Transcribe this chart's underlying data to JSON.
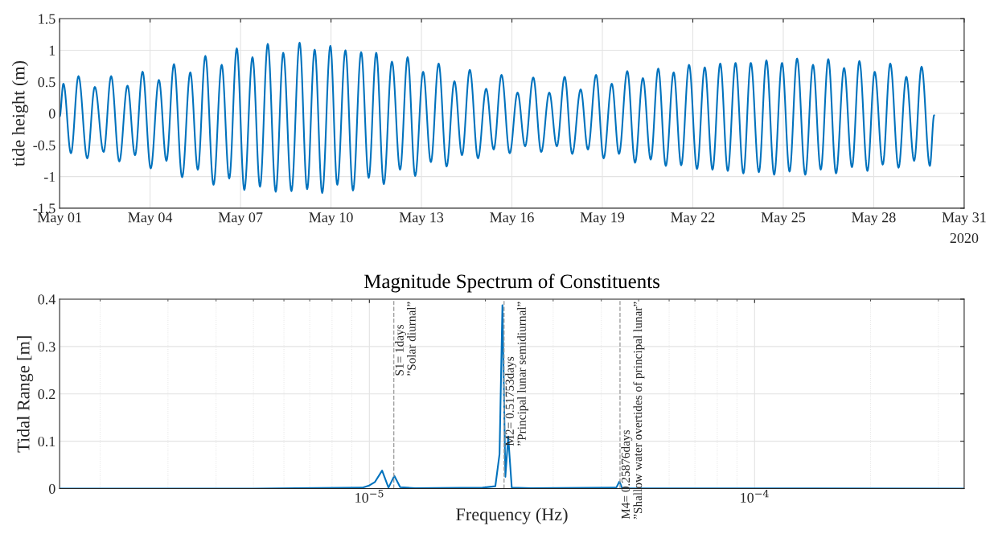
{
  "chart_data": [
    {
      "type": "line",
      "ylabel": "tide height (m)",
      "grid": true,
      "xlim": [
        "2020-05-01",
        "2020-05-31"
      ],
      "xticks": [
        {
          "value": "2020-05-01",
          "label": "May 01"
        },
        {
          "value": "2020-05-04",
          "label": "May 04"
        },
        {
          "value": "2020-05-07",
          "label": "May 07"
        },
        {
          "value": "2020-05-10",
          "label": "May 10"
        },
        {
          "value": "2020-05-13",
          "label": "May 13"
        },
        {
          "value": "2020-05-16",
          "label": "May 16"
        },
        {
          "value": "2020-05-19",
          "label": "May 19"
        },
        {
          "value": "2020-05-22",
          "label": "May 22"
        },
        {
          "value": "2020-05-25",
          "label": "May 25"
        },
        {
          "value": "2020-05-28",
          "label": "May 28"
        },
        {
          "value": "2020-05-31",
          "label": "May 31"
        }
      ],
      "ylim": [
        -1.5,
        1.5
      ],
      "yticks": [
        -1.5,
        -1,
        -0.5,
        0,
        0.5,
        1,
        1.5
      ],
      "annotations": [
        "2020"
      ],
      "x": [
        "2020-05-01T00:00",
        "2020-05-01T03:00",
        "2020-05-01T09:00",
        "2020-05-01T15:00",
        "2020-05-01T22:00",
        "2020-05-02T04:00",
        "2020-05-02T11:00",
        "2020-05-02T17:00",
        "2020-05-02T23:30",
        "2020-05-03T06:00",
        "2020-05-03T12:00",
        "2020-05-03T18:00",
        "2020-05-04T00:30",
        "2020-05-04T07:00",
        "2020-05-04T13:00",
        "2020-05-04T19:00",
        "2020-05-05T01:30",
        "2020-05-05T08:00",
        "2020-05-05T14:00",
        "2020-05-05T20:00",
        "2020-05-06T02:30",
        "2020-05-06T09:00",
        "2020-05-06T15:00",
        "2020-05-06T21:00",
        "2020-05-07T03:00",
        "2020-05-07T09:30",
        "2020-05-07T15:30",
        "2020-05-07T21:40",
        "2020-05-08T04:00",
        "2020-05-08T10:00",
        "2020-05-08T16:30",
        "2020-05-08T23:00",
        "2020-05-09T05:00",
        "2020-05-09T11:00",
        "2020-05-09T17:00",
        "2020-05-09T23:30",
        "2020-05-10T05:00",
        "2020-05-10T11:30",
        "2020-05-10T17:30",
        "2020-05-11T00:00",
        "2020-05-11T06:00",
        "2020-05-11T12:00",
        "2020-05-11T18:00",
        "2020-05-12T00:30",
        "2020-05-12T07:00",
        "2020-05-12T13:00",
        "2020-05-12T19:00",
        "2020-05-13T01:20",
        "2020-05-13T07:30",
        "2020-05-13T13:40",
        "2020-05-13T20:00",
        "2020-05-14T02:15",
        "2020-05-14T08:15",
        "2020-05-14T14:30",
        "2020-05-14T21:00",
        "2020-05-15T03:30",
        "2020-05-15T09:30",
        "2020-05-15T15:45",
        "2020-05-15T22:15",
        "2020-05-16T04:30",
        "2020-05-16T10:30",
        "2020-05-16T17:00",
        "2020-05-16T23:20",
        "2020-05-17T05:45",
        "2020-05-17T11:45",
        "2020-05-17T18:00",
        "2020-05-18T00:00",
        "2020-05-18T06:45",
        "2020-05-18T12:30",
        "2020-05-18T19:00",
        "2020-05-19T01:00",
        "2020-05-19T07:30",
        "2020-05-19T13:15",
        "2020-05-19T19:50",
        "2020-05-20T02:00",
        "2020-05-20T08:15",
        "2020-05-20T14:30",
        "2020-05-20T20:30",
        "2020-05-21T02:30",
        "2020-05-21T08:45",
        "2020-05-21T14:45",
        "2020-05-21T21:00",
        "2020-05-22T03:20",
        "2020-05-22T09:30",
        "2020-05-22T15:40",
        "2020-05-22T21:50",
        "2020-05-23T03:50",
        "2020-05-23T10:00",
        "2020-05-23T16:15",
        "2020-05-23T22:10",
        "2020-05-24T04:35",
        "2020-05-24T10:35",
        "2020-05-24T16:45",
        "2020-05-24T23:00",
        "2020-05-25T05:00",
        "2020-05-25T11:00",
        "2020-05-25T17:30",
        "2020-05-25T23:40",
        "2020-05-26T05:50",
        "2020-05-26T11:50",
        "2020-05-26T18:00",
        "2020-05-27T00:25",
        "2020-05-27T06:40",
        "2020-05-27T12:35",
        "2020-05-27T19:00",
        "2020-05-28T00:45",
        "2020-05-28T07:10",
        "2020-05-28T13:10",
        "2020-05-28T19:45",
        "2020-05-29T01:55",
        "2020-05-29T08:10",
        "2020-05-29T14:05",
        "2020-05-29T20:40",
        "2020-05-30T00:05"
      ],
      "series": [
        {
          "color": "#0072bd",
          "values": [
            -0.05,
            0.47,
            -0.63,
            0.59,
            -0.71,
            0.42,
            -0.61,
            0.59,
            -0.76,
            0.44,
            -0.66,
            0.66,
            -0.87,
            0.53,
            -0.75,
            0.78,
            -1.01,
            0.65,
            -0.89,
            0.91,
            -1.13,
            0.77,
            -1.03,
            1.03,
            -1.21,
            0.89,
            -1.16,
            1.1,
            -1.24,
            0.96,
            -1.23,
            1.12,
            -1.2,
            1.01,
            -1.26,
            1.07,
            -1.13,
            1.0,
            -1.22,
            0.97,
            -1.02,
            0.96,
            -1.12,
            0.82,
            -0.89,
            0.89,
            -0.99,
            0.66,
            -0.77,
            0.79,
            -0.84,
            0.51,
            -0.66,
            0.69,
            -0.71,
            0.39,
            -0.57,
            0.61,
            -0.63,
            0.33,
            -0.52,
            0.57,
            -0.61,
            0.33,
            -0.52,
            0.58,
            -0.64,
            0.38,
            -0.57,
            0.61,
            -0.71,
            0.47,
            -0.64,
            0.67,
            -0.78,
            0.56,
            -0.73,
            0.71,
            -0.83,
            0.65,
            -0.82,
            0.77,
            -0.88,
            0.73,
            -0.89,
            0.79,
            -0.91,
            0.8,
            -0.95,
            0.8,
            -0.93,
            0.84,
            -0.97,
            0.8,
            -0.92,
            0.87,
            -0.97,
            0.77,
            -0.89,
            0.86,
            -0.95,
            0.72,
            -0.85,
            0.83,
            -0.91,
            0.66,
            -0.81,
            0.79,
            -0.86,
            0.58,
            -0.75,
            0.74,
            -0.83,
            -0.03
          ]
        }
      ]
    },
    {
      "type": "line",
      "title": "Magnitude Spectrum of Constituents",
      "xlabel": "Frequency (Hz)",
      "ylabel": "Tidal Range [m]",
      "grid": true,
      "log": "x",
      "xlim": [
        1.57e-06,
        0.00035
      ],
      "xticks": [
        {
          "value": 1e-05,
          "label": "10$^{−5}$"
        },
        {
          "value": 0.0001,
          "label": "10$^{−4}$"
        }
      ],
      "ylim": [
        0,
        0.4
      ],
      "yticks": [
        0,
        0.1,
        0.2,
        0.3,
        0.4
      ],
      "x": [
        1.57e-06,
        5e-06,
        9.58e-06,
        9.95e-06,
        1.034e-05,
        1.079e-05,
        1.121e-05,
        1.161e-05,
        1.202e-05,
        1.315e-05,
        1.966e-05,
        2.123e-05,
        2.177e-05,
        2.215e-05,
        2.254e-05,
        2.293e-05,
        2.342e-05,
        2.628e-05,
        4.374e-05,
        4.458e-05,
        4.528e-05,
        0.00035
      ],
      "series": [
        {
          "color": "#0072bd",
          "values": [
            0,
            0,
            0.002,
            0.006,
            0.014,
            0.038,
            0.002,
            0.027,
            0.003,
            0.001,
            0.002,
            0.005,
            0.073,
            0.387,
            0.025,
            0.11,
            0.002,
            0.001,
            0.002,
            0.015,
            0.001,
            0
          ]
        }
      ],
      "annotations": [
        {
          "text": "S1= 1days\n”Solar diurnal”",
          "x": 1.157e-05,
          "y": 0.4
        },
        {
          "text": "M2= 0.51753days\n”Principal lunar semidiurnal”",
          "x": 2.2365e-05,
          "y": 0.4
        },
        {
          "text": "M4= 0.25876days\n”Shallow water overtides of principal lunar”",
          "x": 4.473e-05,
          "y": 0.4
        }
      ],
      "ref_lines": [
        {
          "axis": "x",
          "value": 1.157e-05,
          "color": "#a0a0a0",
          "line_style": "dashed"
        },
        {
          "axis": "x",
          "value": 2.2365e-05,
          "color": "#a0a0a0",
          "line_style": "dashed"
        },
        {
          "axis": "x",
          "value": 4.473e-05,
          "color": "#a0a0a0",
          "line_style": "dashed"
        }
      ]
    }
  ]
}
